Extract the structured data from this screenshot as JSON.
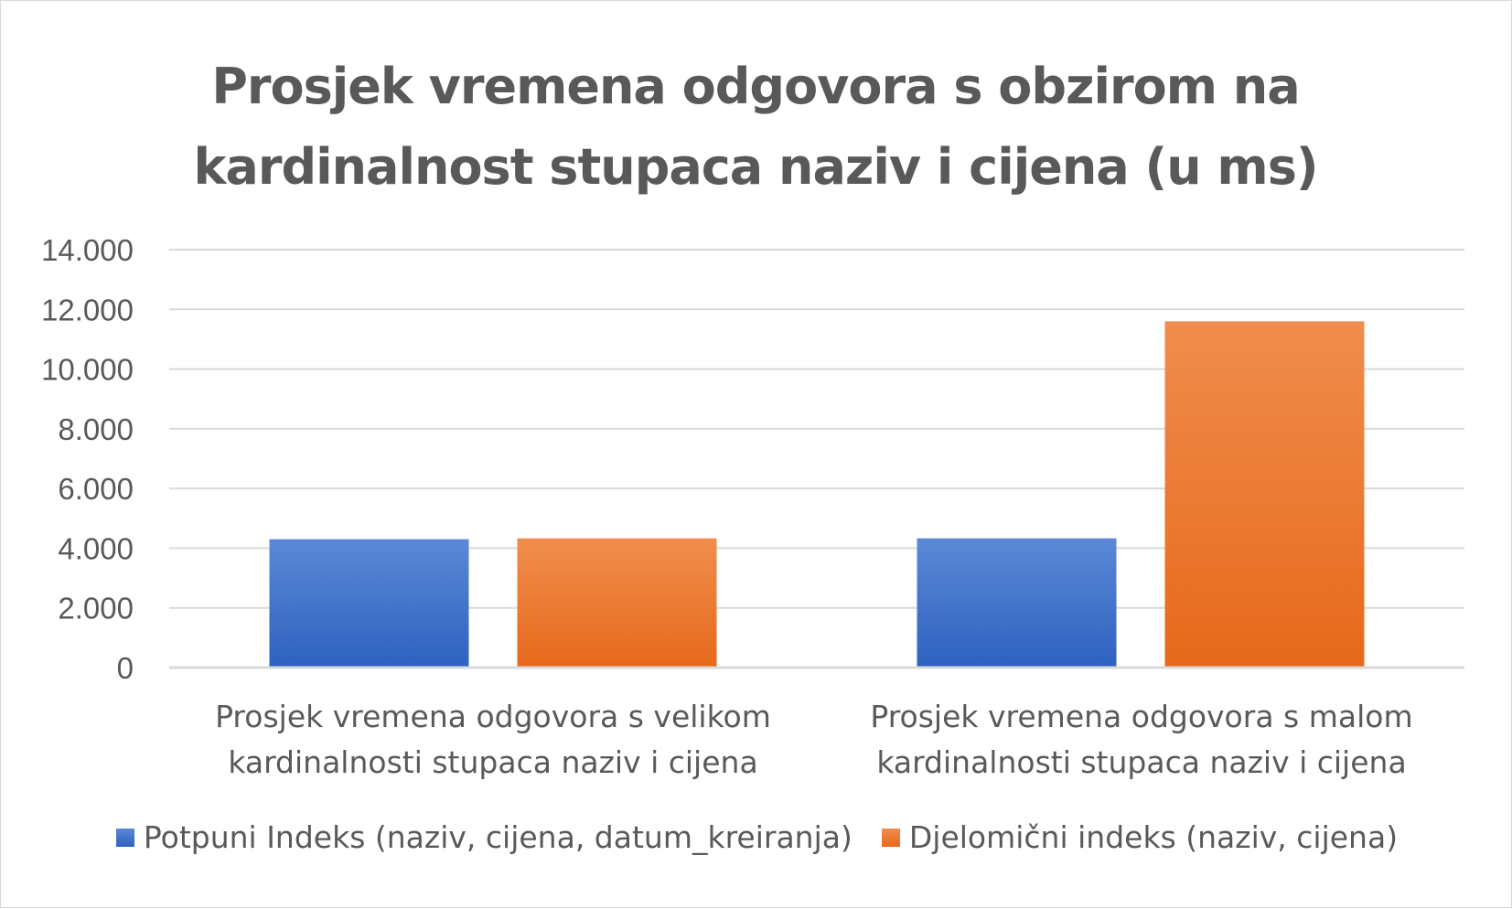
{
  "chart_data": {
    "type": "bar",
    "title": "Prosjek vremena odgovora s obzirom na kardinalnost stupaca naziv i cijena (u ms)",
    "categories": [
      [
        "Prosjek vremena odgovora s velikom",
        "kardinalnosti stupaca naziv i cijena"
      ],
      [
        "Prosjek vremena odgovora s malom",
        "kardinalnosti stupaca naziv i cijena"
      ]
    ],
    "series": [
      {
        "name": "Potpuni Indeks (naziv, cijena, datum_kreiranja)",
        "values": [
          4300,
          4330
        ],
        "color": "#4472C4"
      },
      {
        "name": "Djelomični indeks (naziv, cijena)",
        "values": [
          4330,
          11600
        ],
        "color": "#ED7D31"
      }
    ],
    "ylim": [
      0,
      14000
    ],
    "yticks": [
      "0",
      "2.000",
      "4.000",
      "6.000",
      "8.000",
      "10.000",
      "12.000",
      "14.000"
    ],
    "grid": true,
    "legend_position": "bottom"
  }
}
